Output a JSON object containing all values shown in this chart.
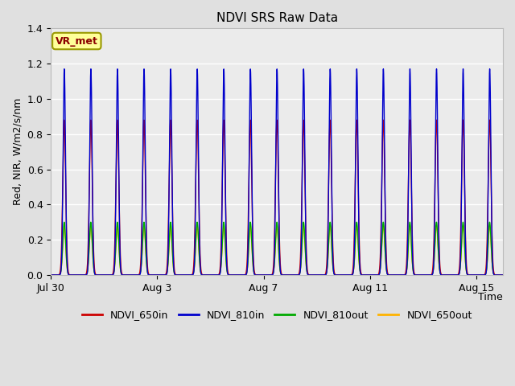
{
  "title": "NDVI SRS Raw Data",
  "xlabel": "Time",
  "ylabel": "Red, NIR, W/m2/s/nm",
  "ylim": [
    0.0,
    1.4
  ],
  "yticks": [
    0.0,
    0.2,
    0.4,
    0.6,
    0.8,
    1.0,
    1.2,
    1.4
  ],
  "xtick_labels": [
    "Jul 30",
    "Aug 3",
    "Aug 7",
    "Aug 11",
    "Aug 15"
  ],
  "annotation_text": "VR_met",
  "annotation_color": "#8B0000",
  "annotation_bg": "#FFFF99",
  "annotation_border": "#999900",
  "legend_entries": [
    "NDVI_650in",
    "NDVI_810in",
    "NDVI_810out",
    "NDVI_650out"
  ],
  "line_colors": [
    "#CC0000",
    "#0000CC",
    "#00AA00",
    "#FFB300"
  ],
  "n_days": 17,
  "peak_650in": 0.88,
  "peak_810in": 1.17,
  "peak_810out": 0.3,
  "peak_650out": 0.28,
  "figure_bg_color": "#E0E0E0",
  "plot_bg_color": "#EBEBEB",
  "grid_color": "#FFFFFF"
}
